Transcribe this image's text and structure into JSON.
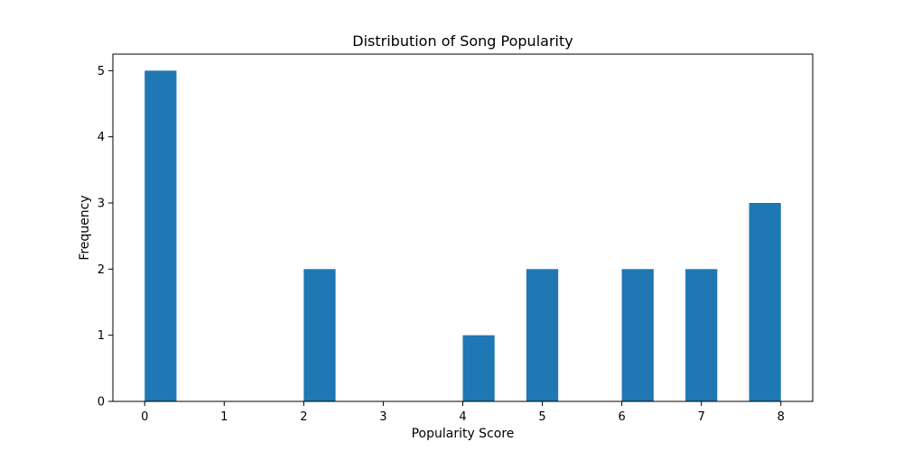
{
  "chart_data": {
    "type": "bar",
    "title": "Distribution of Song Popularity",
    "xlabel": "Popularity Score",
    "ylabel": "Frequency",
    "color": "#1f77b4",
    "xlim": [
      -0.4,
      8.4
    ],
    "ylim": [
      0,
      5.25
    ],
    "xticks": [
      0,
      1,
      2,
      3,
      4,
      5,
      6,
      7,
      8
    ],
    "yticks": [
      0,
      1,
      2,
      3,
      4,
      5
    ],
    "bins": [
      {
        "start": 0.0,
        "end": 0.4,
        "count": 5
      },
      {
        "start": 0.4,
        "end": 0.8,
        "count": 0
      },
      {
        "start": 0.8,
        "end": 1.2,
        "count": 0
      },
      {
        "start": 1.2,
        "end": 1.6,
        "count": 0
      },
      {
        "start": 1.6,
        "end": 2.0,
        "count": 0
      },
      {
        "start": 2.0,
        "end": 2.4,
        "count": 2
      },
      {
        "start": 2.4,
        "end": 2.8,
        "count": 0
      },
      {
        "start": 2.8,
        "end": 3.2,
        "count": 0
      },
      {
        "start": 3.2,
        "end": 3.6,
        "count": 0
      },
      {
        "start": 3.6,
        "end": 4.0,
        "count": 0
      },
      {
        "start": 4.0,
        "end": 4.4,
        "count": 1
      },
      {
        "start": 4.4,
        "end": 4.8,
        "count": 0
      },
      {
        "start": 4.8,
        "end": 5.2,
        "count": 2
      },
      {
        "start": 5.2,
        "end": 5.6,
        "count": 0
      },
      {
        "start": 5.6,
        "end": 6.0,
        "count": 0
      },
      {
        "start": 6.0,
        "end": 6.4,
        "count": 2
      },
      {
        "start": 6.4,
        "end": 6.8,
        "count": 0
      },
      {
        "start": 6.8,
        "end": 7.2,
        "count": 2
      },
      {
        "start": 7.2,
        "end": 7.6,
        "count": 0
      },
      {
        "start": 7.6,
        "end": 8.0,
        "count": 3
      }
    ]
  }
}
